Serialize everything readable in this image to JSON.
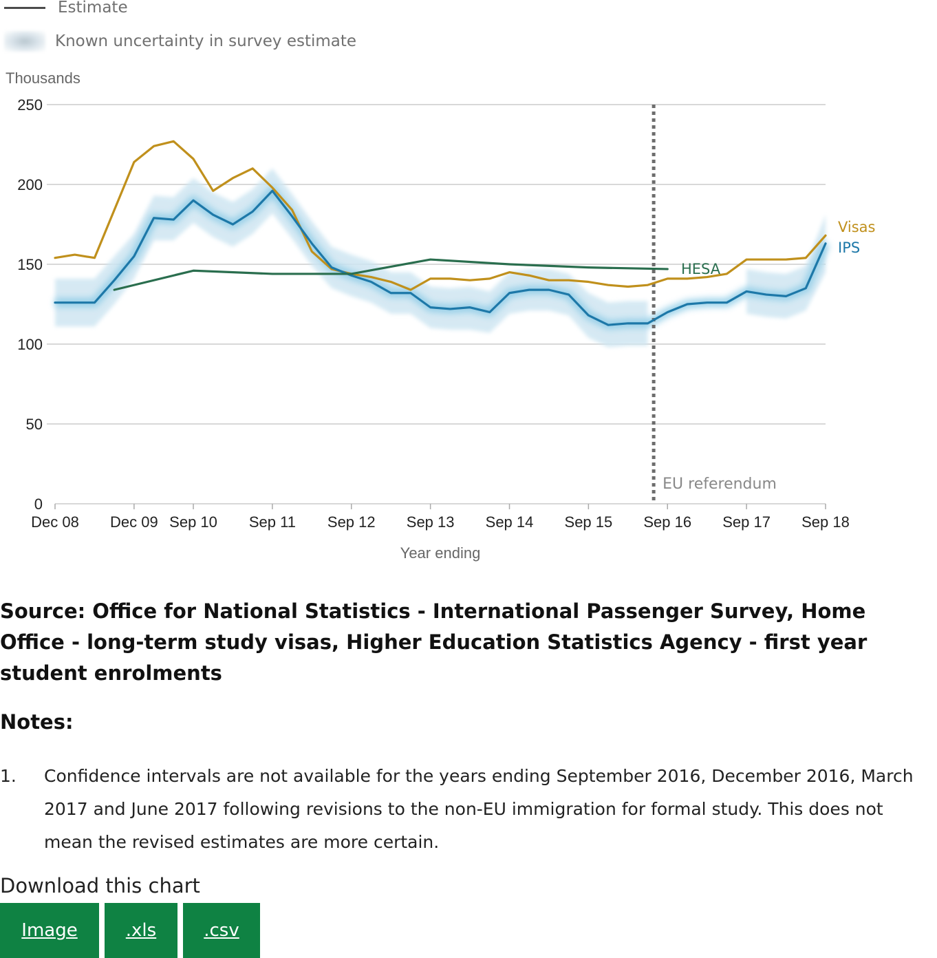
{
  "legend": {
    "estimate_label": "Estimate",
    "uncertainty_label": "Known uncertainty in survey estimate"
  },
  "chart_data": {
    "type": "line",
    "ylabel": "Thousands",
    "xlabel": "Year ending",
    "ylim": [
      0,
      250
    ],
    "yticks": [
      0,
      50,
      100,
      150,
      200,
      250
    ],
    "xticks": [
      {
        "label": "Dec 08",
        "x": 0
      },
      {
        "label": "Dec 09",
        "x": 4
      },
      {
        "label": "Sep 10",
        "x": 7
      },
      {
        "label": "Sep 11",
        "x": 11
      },
      {
        "label": "Sep 12",
        "x": 15
      },
      {
        "label": "Sep 13",
        "x": 19
      },
      {
        "label": "Sep 14",
        "x": 23
      },
      {
        "label": "Sep 15",
        "x": 27
      },
      {
        "label": "Sep 16",
        "x": 31
      },
      {
        "label": "Sep 17",
        "x": 35
      },
      {
        "label": "Sep 18",
        "x": 39
      }
    ],
    "xlim": [
      0,
      39
    ],
    "grid": true,
    "annotation": {
      "label": "EU referendum",
      "x": 30.3
    },
    "series": [
      {
        "name": "Visas",
        "color": "#c0901c",
        "x": [
          0,
          1,
          2,
          3,
          4,
          5,
          6,
          7,
          8,
          9,
          10,
          11,
          12,
          13,
          14,
          15,
          16,
          17,
          18,
          19,
          20,
          21,
          22,
          23,
          24,
          25,
          26,
          27,
          28,
          29,
          30,
          31,
          32,
          33,
          34,
          35,
          36,
          37,
          38,
          39
        ],
        "values": [
          154,
          156,
          154,
          184,
          214,
          224,
          227,
          216,
          196,
          204,
          210,
          198,
          184,
          158,
          147,
          144,
          142,
          139,
          134,
          141,
          141,
          140,
          141,
          145,
          143,
          140,
          140,
          139,
          137,
          136,
          137,
          141,
          141,
          142,
          144,
          153,
          153,
          153,
          154,
          168
        ]
      },
      {
        "name": "IPS",
        "color": "#1d78a8",
        "band_color": "#cfe6f2",
        "x": [
          0,
          1,
          2,
          3,
          4,
          5,
          6,
          7,
          8,
          9,
          10,
          11,
          12,
          13,
          14,
          15,
          16,
          17,
          18,
          19,
          20,
          21,
          22,
          23,
          24,
          25,
          26,
          27,
          28,
          29,
          30,
          31,
          32,
          33,
          34,
          35,
          36,
          37,
          38,
          39
        ],
        "values": [
          126,
          126,
          126,
          140,
          155,
          179,
          178,
          190,
          181,
          175,
          183,
          196,
          180,
          163,
          148,
          143,
          139,
          132,
          132,
          123,
          122,
          123,
          120,
          132,
          134,
          134,
          131,
          118,
          112,
          113,
          113,
          120,
          125,
          126,
          126,
          133,
          131,
          130,
          135,
          163
        ],
        "lower": [
          111,
          111,
          111,
          125,
          141,
          165,
          165,
          176,
          167,
          161,
          169,
          182,
          166,
          149,
          135,
          130,
          126,
          119,
          119,
          110,
          109,
          109,
          107,
          119,
          121,
          121,
          118,
          104,
          98,
          99,
          99,
          null,
          null,
          null,
          null,
          119,
          117,
          116,
          121,
          145
        ],
        "upper": [
          141,
          141,
          141,
          155,
          169,
          193,
          192,
          204,
          195,
          189,
          197,
          210,
          194,
          177,
          161,
          156,
          152,
          145,
          145,
          136,
          135,
          136,
          133,
          145,
          147,
          147,
          144,
          132,
          126,
          127,
          127,
          null,
          null,
          null,
          null,
          147,
          145,
          144,
          149,
          181
        ]
      },
      {
        "name": "HESA",
        "color": "#2a6e4e",
        "x": [
          3,
          7,
          11,
          15,
          19,
          23,
          27,
          31
        ],
        "values": [
          134,
          146,
          144,
          144,
          153,
          150,
          148,
          147
        ]
      }
    ]
  },
  "source_text": "Source: Office for National Statistics - International Passenger Survey, Home Office - long-term study visas, Higher Education Statistics Agency - first year student enrolments",
  "notes": {
    "heading": "Notes:",
    "items": [
      {
        "number": "1.",
        "text": "Confidence intervals are not available for the years ending September 2016, December 2016, March 2017 and June 2017 following revisions to the non-EU immigration for formal study. This does not mean the revised estimates are more certain."
      }
    ]
  },
  "download": {
    "label": "Download this chart",
    "buttons": [
      "Image",
      ".xls",
      ".csv"
    ],
    "button_color": "#0f8243"
  }
}
